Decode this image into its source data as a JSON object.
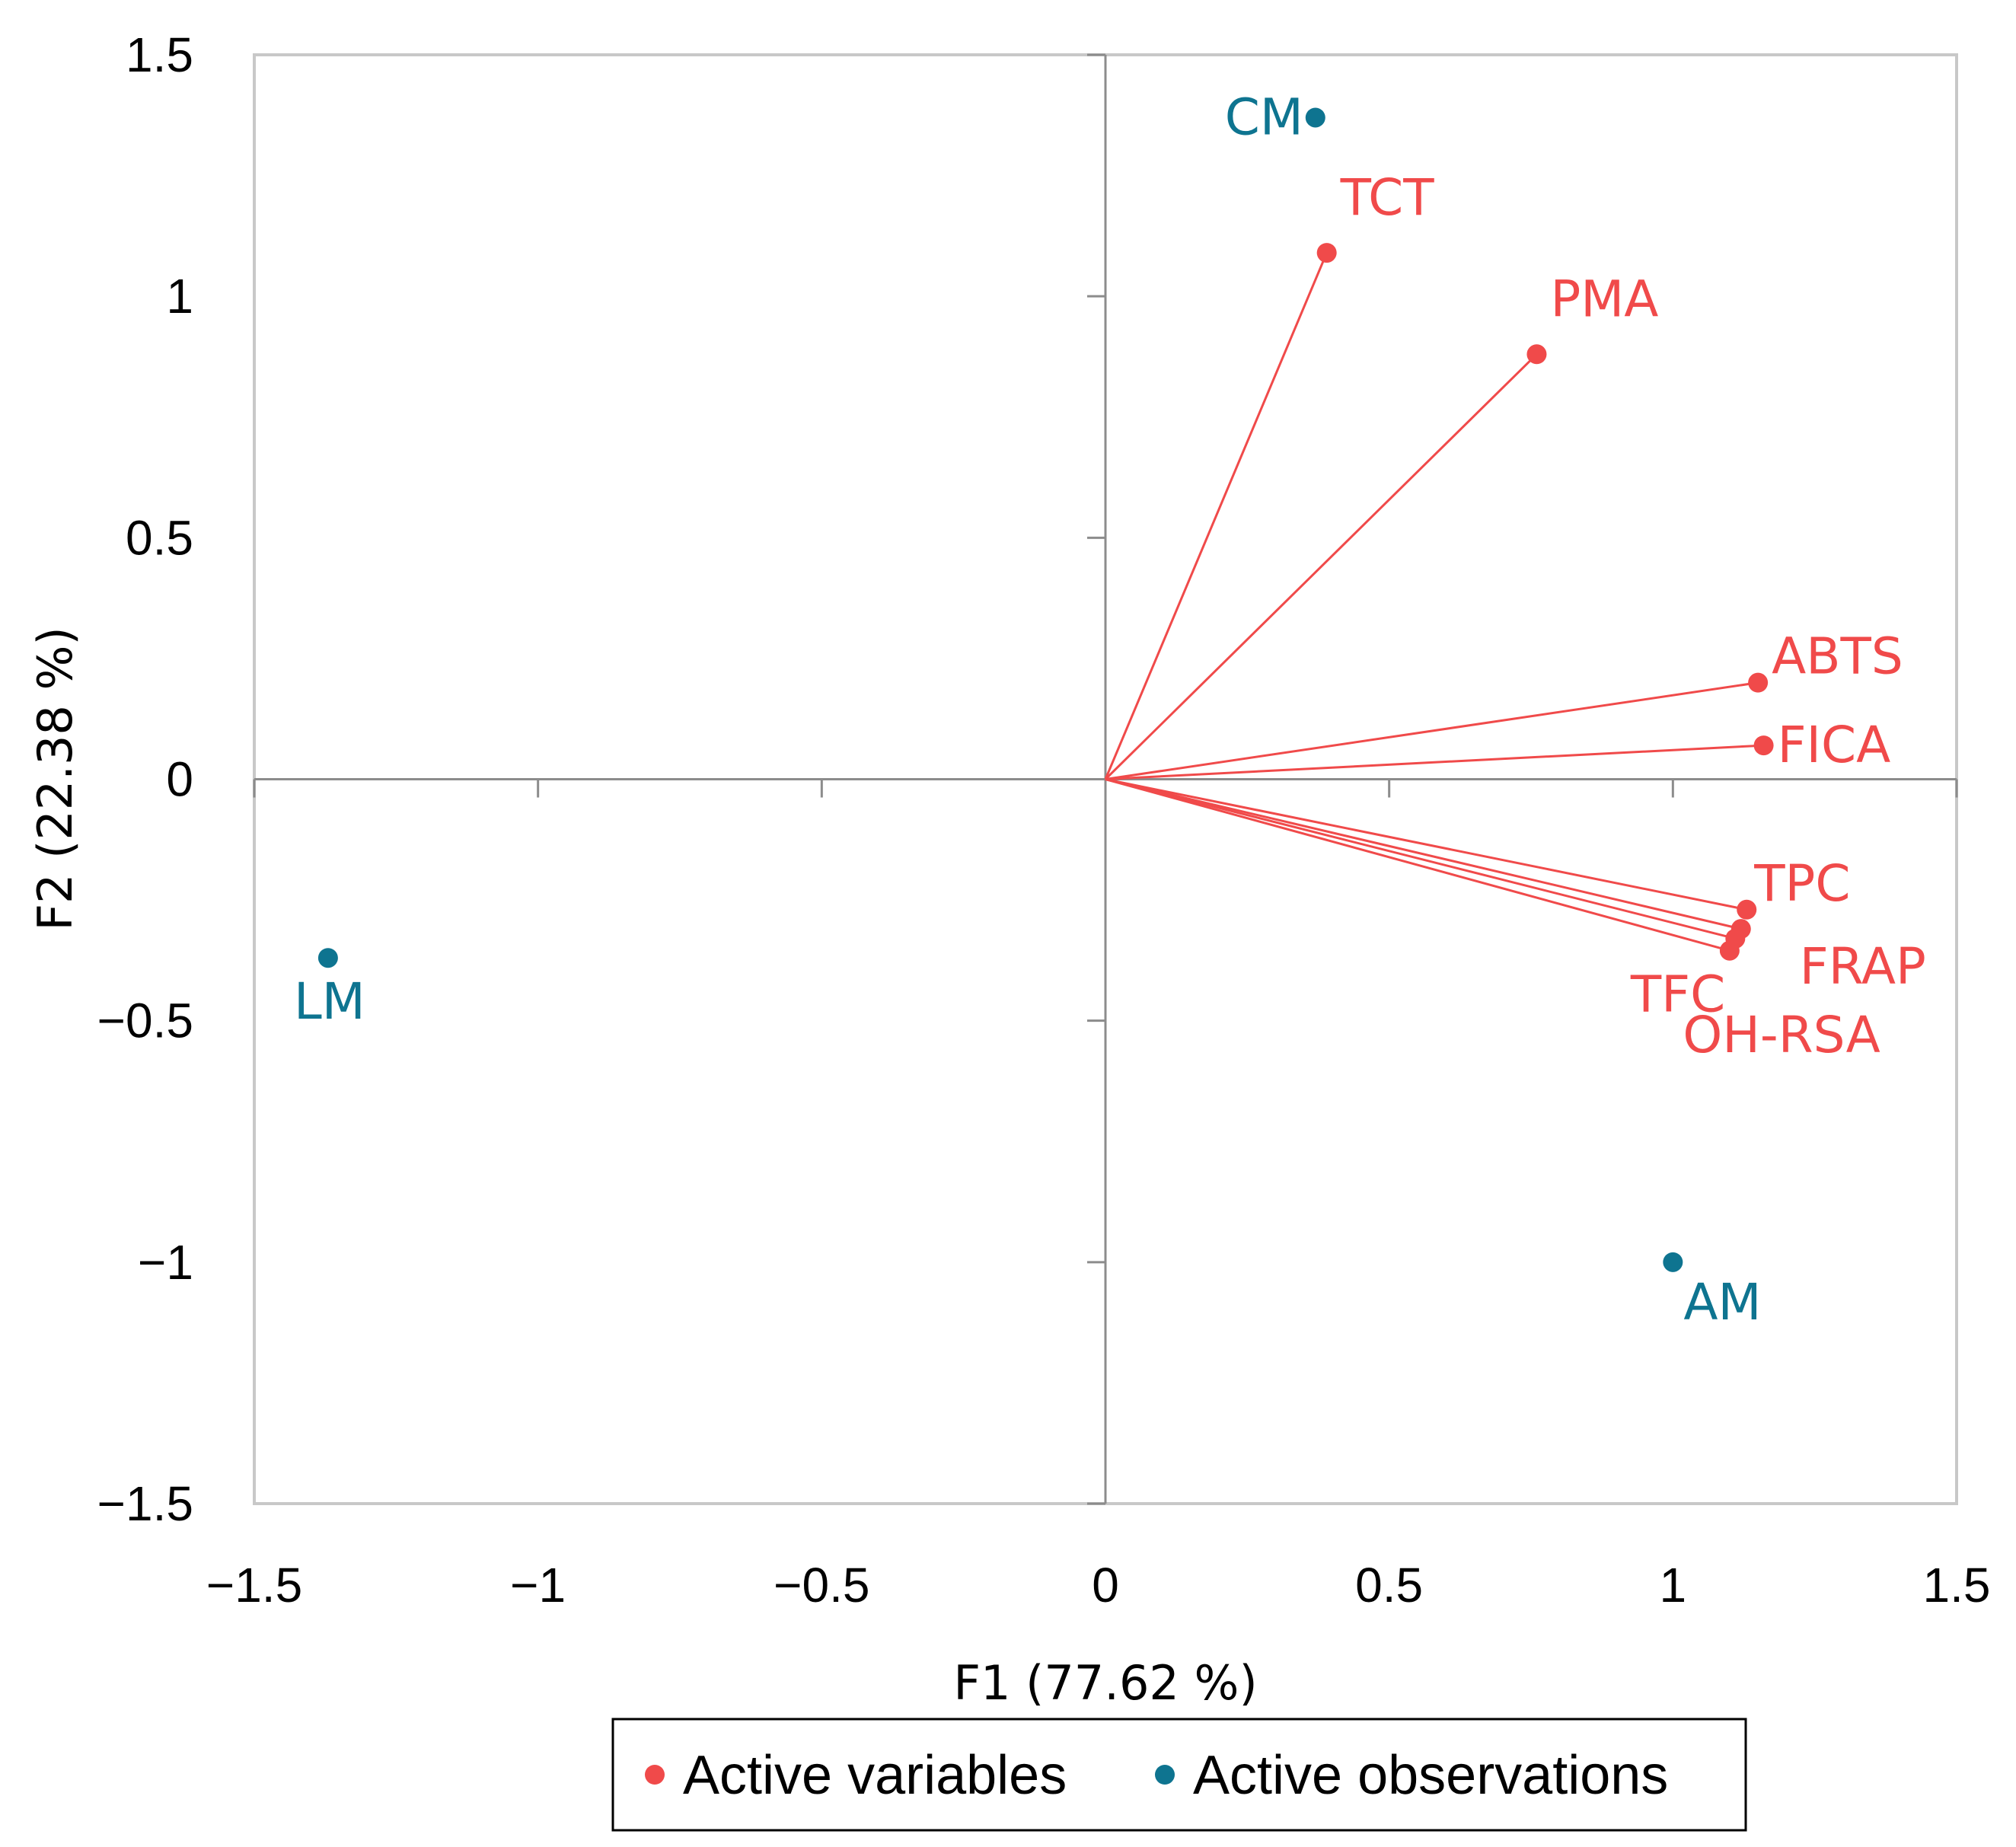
{
  "chart_data": {
    "type": "scatter",
    "subtype": "pca-biplot",
    "xlabel": "F1 (77.62 %)",
    "ylabel": "F2 (22.38 %)",
    "xlim": [
      -1.5,
      1.5
    ],
    "ylim": [
      -1.5,
      1.5
    ],
    "x_ticks": [
      -1.5,
      -1,
      -0.5,
      0,
      0.5,
      1,
      1.5
    ],
    "y_ticks": [
      -1.5,
      -1,
      -0.5,
      0,
      0.5,
      1,
      1.5
    ],
    "x_tick_labels": [
      "−1.5",
      "−1",
      "−0.5",
      "0",
      "0.5",
      "1",
      "1.5"
    ],
    "y_tick_labels": [
      "−1.5",
      "−1",
      "−0.5",
      "0",
      "0.5",
      "1",
      "1.5"
    ],
    "grid": false,
    "legend_position": "bottom",
    "series": [
      {
        "name": "Active variables",
        "color": "#f04a4a",
        "vectors_from_origin": true,
        "points": [
          {
            "label": "TCT",
            "x": 0.39,
            "y": 1.09
          },
          {
            "label": "PMA",
            "x": 0.76,
            "y": 0.88
          },
          {
            "label": "ABTS",
            "x": 1.15,
            "y": 0.2
          },
          {
            "label": "FICA",
            "x": 1.16,
            "y": 0.07
          },
          {
            "label": "TPC",
            "x": 1.13,
            "y": -0.27
          },
          {
            "label": "FRAP",
            "x": 1.12,
            "y": -0.31
          },
          {
            "label": "OH-RSA",
            "x": 1.11,
            "y": -0.33
          },
          {
            "label": "TFC",
            "x": 1.1,
            "y": -0.355
          }
        ]
      },
      {
        "name": "Active observations",
        "color": "#0e7490",
        "vectors_from_origin": false,
        "points": [
          {
            "label": "CM",
            "x": 0.37,
            "y": 1.37
          },
          {
            "label": "LM",
            "x": -1.37,
            "y": -0.37
          },
          {
            "label": "AM",
            "x": 1.0,
            "y": -1.0
          }
        ]
      }
    ]
  }
}
